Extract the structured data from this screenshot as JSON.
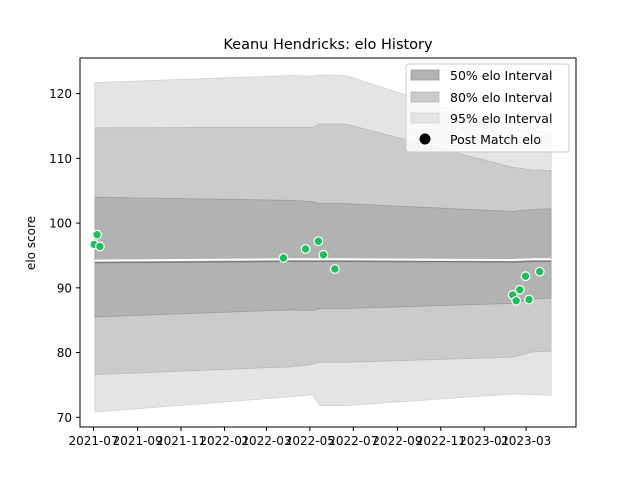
{
  "chart_data": {
    "type": "area",
    "title": "Keanu Hendricks: elo History",
    "xlabel": "",
    "ylabel": "elo score",
    "xlim": [
      "2021-06-12",
      "2023-05-10"
    ],
    "ylim": [
      68.5,
      125.5
    ],
    "x_ticks": [
      "2021-07",
      "2021-09",
      "2021-11",
      "2022-01",
      "2022-03",
      "2022-05",
      "2022-07",
      "2022-09",
      "2022-11",
      "2023-01",
      "2023-03"
    ],
    "y_ticks": [
      70,
      80,
      90,
      100,
      110,
      120
    ],
    "grid": false,
    "legend_position": "top-right",
    "legend": [
      "50% elo Interval",
      "80% elo Interval",
      "95% elo Interval",
      "Post Match elo"
    ],
    "colors": {
      "band95": "#e4e4e4",
      "band80": "#cbcbcb",
      "band50": "#b2b2b2",
      "mean_line": "#ffffff",
      "points": "#1fbe5a"
    },
    "band_dates": [
      "2021-07-03",
      "2022-04-05",
      "2022-05-05",
      "2022-05-15",
      "2022-06-20",
      "2023-02-10",
      "2023-03-10",
      "2023-04-05"
    ],
    "mean": [
      94.2,
      94.4,
      94.4,
      94.4,
      94.4,
      94.3,
      94.4,
      94.4
    ],
    "bands": [
      {
        "name": "95% elo Interval",
        "lower": [
          70.8,
          73.2,
          73.5,
          71.8,
          71.8,
          73.6,
          73.5,
          73.4
        ],
        "upper": [
          121.7,
          122.8,
          122.7,
          122.9,
          122.8,
          114.5,
          114.2,
          114.0
        ]
      },
      {
        "name": "80% elo Interval",
        "lower": [
          76.6,
          77.8,
          78.2,
          78.5,
          78.5,
          79.3,
          80.1,
          80.2
        ],
        "upper": [
          114.7,
          114.8,
          114.8,
          115.3,
          115.3,
          108.6,
          108.2,
          108.1
        ]
      },
      {
        "name": "50% elo Interval",
        "lower": [
          85.5,
          86.6,
          86.5,
          86.8,
          86.8,
          87.6,
          88.3,
          88.4
        ],
        "upper": [
          104.0,
          103.5,
          103.3,
          103.0,
          103.0,
          101.8,
          102.1,
          102.2
        ]
      }
    ],
    "points_series_name": "Post Match elo",
    "points": [
      {
        "x": "2021-07-02",
        "y": 96.7
      },
      {
        "x": "2021-07-06",
        "y": 98.2
      },
      {
        "x": "2021-07-10",
        "y": 96.4
      },
      {
        "x": "2022-03-25",
        "y": 94.6
      },
      {
        "x": "2022-04-25",
        "y": 96.0
      },
      {
        "x": "2022-05-13",
        "y": 97.2
      },
      {
        "x": "2022-05-20",
        "y": 95.1
      },
      {
        "x": "2022-06-05",
        "y": 92.9
      },
      {
        "x": "2023-02-10",
        "y": 88.9
      },
      {
        "x": "2023-02-15",
        "y": 88.0
      },
      {
        "x": "2023-02-20",
        "y": 89.7
      },
      {
        "x": "2023-02-28",
        "y": 91.8
      },
      {
        "x": "2023-03-05",
        "y": 88.2
      },
      {
        "x": "2023-03-20",
        "y": 92.5
      }
    ]
  }
}
